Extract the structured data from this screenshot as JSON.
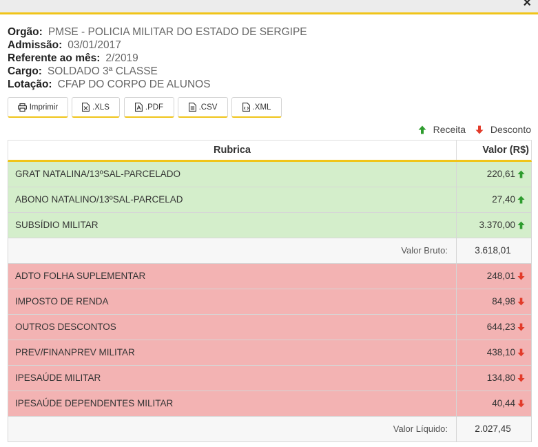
{
  "dialog": {
    "close_label": "×"
  },
  "info": [
    {
      "label": "Orgão:",
      "value": "PMSE - POLICIA MILITAR DO ESTADO DE SERGIPE"
    },
    {
      "label": "Admissão:",
      "value": "03/01/2017"
    },
    {
      "label": "Referente ao mês:",
      "value": "2/2019"
    },
    {
      "label": "Cargo:",
      "value": "SOLDADO 3ª CLASSE"
    },
    {
      "label": "Lotação:",
      "value": "CFAP DO CORPO DE ALUNOS"
    }
  ],
  "toolbar": {
    "print_label": "Imprimir",
    "xls_label": ".XLS",
    "pdf_label": ".PDF",
    "csv_label": ".CSV",
    "xml_label": ".XML"
  },
  "legend": {
    "receita": "Receita",
    "desconto": "Desconto"
  },
  "colors": {
    "accent": "#f0c419",
    "up": "#2e9c2e",
    "down": "#e23b2a",
    "receita_bg": "#d4eecb",
    "desconto_bg": "#f3b3b3"
  },
  "table": {
    "headers": [
      "Rubrica",
      "Valor (R$)"
    ],
    "receitas": [
      {
        "rubrica": "GRAT NATALINA/13ºSAL-PARCELADO",
        "valor": "220,61"
      },
      {
        "rubrica": "ABONO NATALINO/13ºSAL-PARCELAD",
        "valor": "27,40"
      },
      {
        "rubrica": "SUBSÍDIO MILITAR",
        "valor": "3.370,00"
      }
    ],
    "bruto": {
      "label": "Valor Bruto:",
      "value": "3.618,01"
    },
    "descontos": [
      {
        "rubrica": "ADTO FOLHA SUPLEMENTAR",
        "valor": "248,01"
      },
      {
        "rubrica": "IMPOSTO DE RENDA",
        "valor": "84,98"
      },
      {
        "rubrica": "OUTROS DESCONTOS",
        "valor": "644,23"
      },
      {
        "rubrica": "PREV/FINANPREV MILITAR",
        "valor": "438,10"
      },
      {
        "rubrica": "IPESAÚDE MILITAR",
        "valor": "134,80"
      },
      {
        "rubrica": "IPESAÚDE DEPENDENTES MILITAR",
        "valor": "40,44"
      }
    ],
    "liquido": {
      "label": "Valor Líquido:",
      "value": "2.027,45"
    }
  }
}
